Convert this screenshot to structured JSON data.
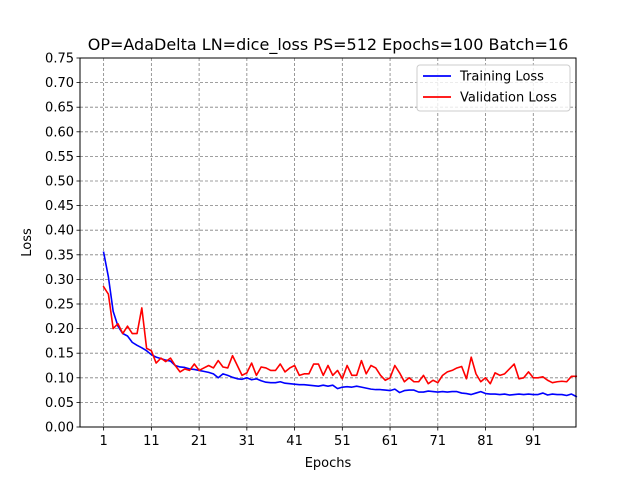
{
  "chart_data": {
    "type": "line",
    "title": "OP=AdaDelta LN=dice_loss PS=512 Epochs=100 Batch=16",
    "xlabel": "Epochs",
    "ylabel": "Loss",
    "xlim": [
      -3.95,
      99.95
    ],
    "ylim": [
      0,
      0.75
    ],
    "x_ticks": [
      1,
      11,
      21,
      31,
      41,
      51,
      61,
      71,
      81,
      91
    ],
    "y_ticks": [
      0.0,
      0.05,
      0.1,
      0.15,
      0.2,
      0.25,
      0.3,
      0.35,
      0.4,
      0.45,
      0.5,
      0.55,
      0.6,
      0.65,
      0.7,
      0.75
    ],
    "grid": true,
    "legend_position": "upper right",
    "x": [
      1,
      2,
      3,
      4,
      5,
      6,
      7,
      8,
      9,
      10,
      11,
      12,
      13,
      14,
      15,
      16,
      17,
      18,
      19,
      20,
      21,
      22,
      23,
      24,
      25,
      26,
      27,
      28,
      29,
      30,
      31,
      32,
      33,
      34,
      35,
      36,
      37,
      38,
      39,
      40,
      41,
      42,
      43,
      44,
      45,
      46,
      47,
      48,
      49,
      50,
      51,
      52,
      53,
      54,
      55,
      56,
      57,
      58,
      59,
      60,
      61,
      62,
      63,
      64,
      65,
      66,
      67,
      68,
      69,
      70,
      71,
      72,
      73,
      74,
      75,
      76,
      77,
      78,
      79,
      80,
      81,
      82,
      83,
      84,
      85,
      86,
      87,
      88,
      89,
      90,
      91,
      92,
      93,
      94,
      95,
      96,
      97,
      98,
      99,
      100
    ],
    "series": [
      {
        "name": "Training Loss",
        "color": "#0000ff",
        "values": [
          0.355,
          0.305,
          0.235,
          0.205,
          0.19,
          0.185,
          0.172,
          0.166,
          0.161,
          0.155,
          0.147,
          0.142,
          0.139,
          0.136,
          0.134,
          0.125,
          0.122,
          0.121,
          0.118,
          0.117,
          0.115,
          0.113,
          0.111,
          0.108,
          0.1,
          0.108,
          0.105,
          0.101,
          0.098,
          0.097,
          0.1,
          0.096,
          0.098,
          0.094,
          0.091,
          0.09,
          0.09,
          0.092,
          0.089,
          0.088,
          0.087,
          0.086,
          0.086,
          0.085,
          0.084,
          0.083,
          0.085,
          0.083,
          0.085,
          0.078,
          0.081,
          0.082,
          0.081,
          0.083,
          0.081,
          0.079,
          0.077,
          0.076,
          0.076,
          0.075,
          0.074,
          0.077,
          0.07,
          0.074,
          0.075,
          0.075,
          0.071,
          0.071,
          0.073,
          0.072,
          0.071,
          0.072,
          0.071,
          0.072,
          0.072,
          0.069,
          0.068,
          0.066,
          0.069,
          0.072,
          0.068,
          0.067,
          0.067,
          0.066,
          0.067,
          0.065,
          0.066,
          0.067,
          0.066,
          0.067,
          0.066,
          0.066,
          0.069,
          0.065,
          0.067,
          0.066,
          0.066,
          0.064,
          0.067,
          0.062
        ]
      },
      {
        "name": "Validation Loss",
        "color": "#ff0000",
        "values": [
          0.285,
          0.27,
          0.2,
          0.21,
          0.19,
          0.205,
          0.19,
          0.19,
          0.242,
          0.16,
          0.155,
          0.13,
          0.14,
          0.133,
          0.14,
          0.125,
          0.112,
          0.118,
          0.115,
          0.128,
          0.115,
          0.12,
          0.125,
          0.12,
          0.135,
          0.122,
          0.12,
          0.145,
          0.125,
          0.105,
          0.11,
          0.13,
          0.105,
          0.122,
          0.12,
          0.115,
          0.115,
          0.128,
          0.112,
          0.12,
          0.125,
          0.105,
          0.108,
          0.108,
          0.128,
          0.128,
          0.105,
          0.125,
          0.105,
          0.115,
          0.098,
          0.125,
          0.105,
          0.105,
          0.135,
          0.108,
          0.125,
          0.12,
          0.105,
          0.095,
          0.1,
          0.125,
          0.11,
          0.092,
          0.1,
          0.092,
          0.092,
          0.105,
          0.088,
          0.095,
          0.09,
          0.105,
          0.112,
          0.115,
          0.12,
          0.123,
          0.098,
          0.142,
          0.108,
          0.092,
          0.1,
          0.088,
          0.11,
          0.105,
          0.108,
          0.118,
          0.128,
          0.098,
          0.1,
          0.112,
          0.1,
          0.1,
          0.102,
          0.095,
          0.09,
          0.092,
          0.093,
          0.092,
          0.103,
          0.103
        ]
      }
    ]
  }
}
